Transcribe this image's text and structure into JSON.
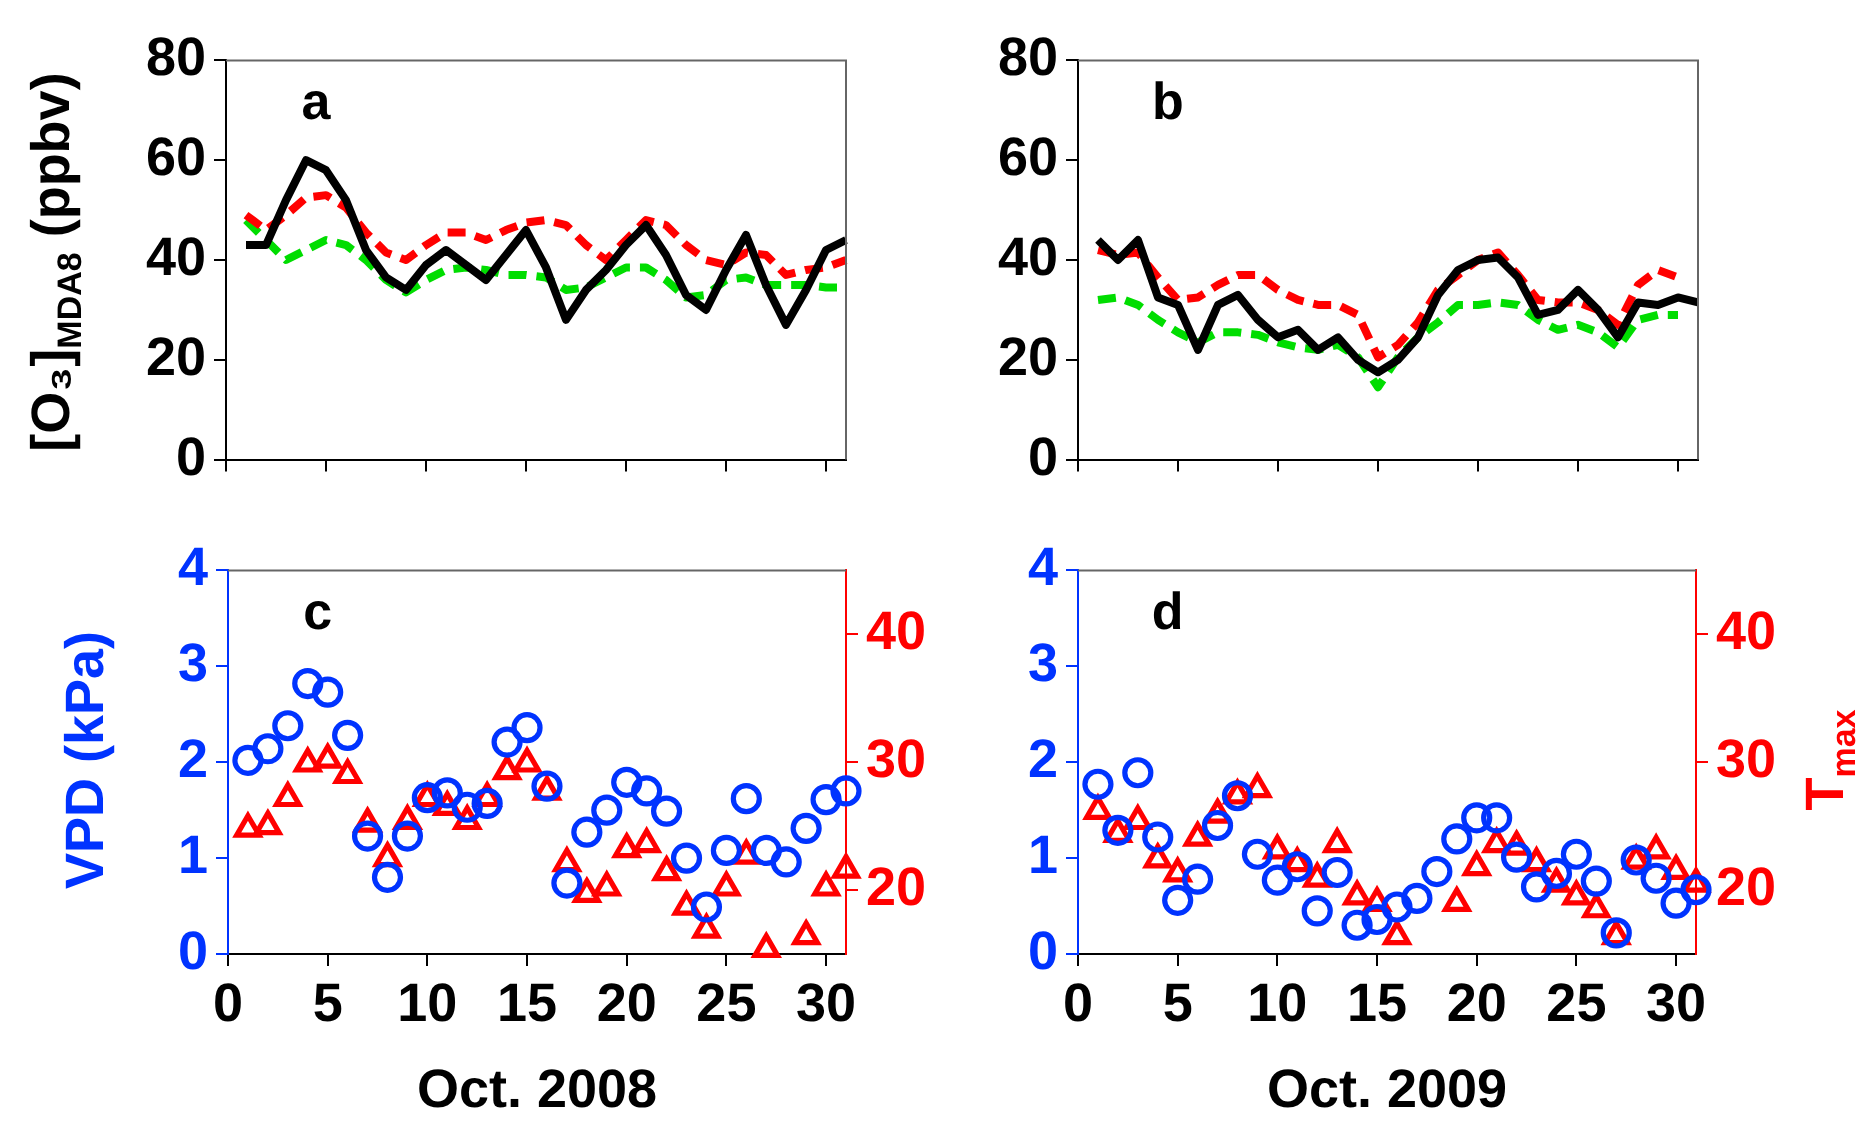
{
  "chart_data": [
    {
      "type": "line",
      "annotations": [
        "a"
      ],
      "ylabel": "[O₃]$_{MDA8}$ (ppbv)",
      "x": [
        1,
        2,
        3,
        4,
        5,
        6,
        7,
        8,
        9,
        10,
        11,
        12,
        13,
        14,
        15,
        16,
        17,
        18,
        19,
        20,
        21,
        22,
        23,
        24,
        25,
        26,
        27,
        28,
        29,
        30,
        31
      ],
      "xlim": [
        0,
        31
      ],
      "xticks": [
        0,
        5,
        10,
        15,
        20,
        25,
        30
      ],
      "ylim": [
        0,
        80
      ],
      "yticks": [
        0,
        20,
        40,
        60,
        80
      ],
      "tick_labels": "y",
      "series": [
        {
          "color": "#000000",
          "line_style": "solid",
          "values": [
            43,
            43,
            52,
            60,
            58,
            52,
            42,
            36.5,
            34,
            39,
            42,
            39,
            36,
            41,
            46,
            38.5,
            28,
            34,
            38,
            43,
            47,
            41,
            33,
            30,
            38,
            45,
            35,
            27,
            34,
            42,
            44
          ]
        },
        {
          "color": "#ff0000",
          "line_style": "dashed",
          "values": [
            49,
            46,
            49,
            52.5,
            53,
            50.5,
            45.5,
            41.5,
            40,
            43,
            45.5,
            45.5,
            44,
            46,
            47.5,
            48,
            47,
            43,
            40,
            44,
            48,
            47,
            43,
            40,
            39,
            41.5,
            41,
            37,
            38,
            38.5,
            40
          ]
        },
        {
          "color": "#00dd00",
          "line_style": "dashed",
          "values": [
            48,
            44,
            40,
            42,
            44,
            43,
            40,
            36,
            33.5,
            36,
            38,
            38.5,
            38,
            37,
            37,
            36.5,
            34,
            34.5,
            36.5,
            38.5,
            38.5,
            36,
            32.5,
            33,
            36,
            36.5,
            35,
            35,
            35,
            34.5,
            34.5
          ]
        }
      ]
    },
    {
      "type": "line",
      "annotations": [
        "b"
      ],
      "x": [
        1,
        2,
        3,
        4,
        5,
        6,
        7,
        8,
        9,
        10,
        11,
        12,
        13,
        14,
        15,
        16,
        17,
        18,
        19,
        20,
        21,
        22,
        23,
        24,
        25,
        26,
        27,
        28,
        29,
        30,
        31
      ],
      "xlim": [
        0,
        31
      ],
      "xticks": [
        0,
        5,
        10,
        15,
        20,
        25,
        30
      ],
      "ylim": [
        0,
        80
      ],
      "yticks": [
        0,
        20,
        40,
        60,
        80
      ],
      "tick_labels": "y",
      "series": [
        {
          "color": "#000000",
          "line_style": "solid",
          "values": [
            44,
            40,
            44,
            32.5,
            31,
            22,
            31,
            33,
            28,
            24.5,
            26,
            22,
            24.5,
            20,
            17.5,
            20,
            24.5,
            33,
            38,
            40,
            40.5,
            36.5,
            29,
            30,
            34,
            30,
            24.5,
            31.5,
            31,
            32.5,
            31.5
          ]
        },
        {
          "color": "#ff0000",
          "line_style": "dashed",
          "values": [
            42,
            41,
            41.5,
            36.5,
            32,
            32.5,
            35,
            37,
            37,
            34,
            32,
            31,
            31,
            29,
            20.5,
            23,
            27.5,
            34,
            37,
            40,
            41.5,
            37,
            32,
            31.5,
            31.5,
            30,
            27,
            35,
            38,
            36.5,
            null
          ]
        },
        {
          "color": "#00dd00",
          "line_style": "dashed",
          "values": [
            32,
            32.5,
            31,
            28,
            25.5,
            23.5,
            25.5,
            25.5,
            25,
            23.5,
            22.5,
            22,
            23,
            20.5,
            14.5,
            20.5,
            24.5,
            27.5,
            31,
            31,
            31.5,
            31,
            28,
            26,
            27,
            25.5,
            22.5,
            28,
            29,
            29,
            null
          ]
        }
      ]
    },
    {
      "type": "scatter",
      "annotations": [
        "c"
      ],
      "xlabel": "Oct. 2008",
      "ylabel": "VPD (kPa)",
      "x": [
        1,
        2,
        3,
        4,
        5,
        6,
        7,
        8,
        9,
        10,
        11,
        12,
        13,
        14,
        15,
        16,
        17,
        18,
        19,
        20,
        21,
        22,
        23,
        24,
        25,
        26,
        27,
        28,
        29,
        30,
        31
      ],
      "xlim": [
        0,
        31
      ],
      "xticks": [
        0,
        5,
        10,
        15,
        20,
        25,
        30
      ],
      "ylim": [
        0,
        4
      ],
      "yticks": [
        0,
        1,
        2,
        3,
        4
      ],
      "y2lim": [
        15,
        45
      ],
      "y2ticks": [
        20,
        30,
        40
      ],
      "series": [
        {
          "color": "#0033ff",
          "marker": "circle",
          "values": [
            2.02,
            2.14,
            2.38,
            2.82,
            2.73,
            2.28,
            1.23,
            0.8,
            1.23,
            1.63,
            1.68,
            1.53,
            1.57,
            2.21,
            2.36,
            1.75,
            0.74,
            1.27,
            1.5,
            1.79,
            1.7,
            1.49,
            1.0,
            0.49,
            1.08,
            1.62,
            1.08,
            0.96,
            1.31,
            1.61,
            1.7
          ]
        },
        {
          "color": "#ff0000",
          "marker": "triangle",
          "axis": "y2",
          "values": [
            24.8,
            25,
            27.2,
            29.9,
            30.2,
            29,
            25.2,
            22.5,
            25.4,
            27.2,
            26.5,
            25.4,
            27.2,
            29.3,
            29.9,
            27.7,
            22.1,
            19.7,
            20.2,
            23.2,
            23.6,
            21.4,
            18.7,
            16.9,
            20.2,
            22.7,
            15.4,
            null,
            16.4,
            20.2,
            21.6
          ]
        }
      ]
    },
    {
      "type": "scatter",
      "annotations": [
        "d"
      ],
      "xlabel": "Oct. 2009",
      "y2label": "T$_{max}$",
      "x": [
        1,
        2,
        3,
        4,
        5,
        6,
        7,
        8,
        9,
        10,
        11,
        12,
        13,
        14,
        15,
        16,
        17,
        18,
        19,
        20,
        21,
        22,
        23,
        24,
        25,
        26,
        27,
        28,
        29,
        30,
        31
      ],
      "xlim": [
        0,
        31
      ],
      "xticks": [
        0,
        5,
        10,
        15,
        20,
        25,
        30
      ],
      "ylim": [
        0,
        4
      ],
      "yticks": [
        0,
        1,
        2,
        3,
        4
      ],
      "y2lim": [
        15,
        45
      ],
      "y2ticks": [
        20,
        30,
        40
      ],
      "series": [
        {
          "color": "#0033ff",
          "marker": "circle",
          "values": [
            1.77,
            1.29,
            1.89,
            1.22,
            0.56,
            0.78,
            1.34,
            1.65,
            1.04,
            0.77,
            0.91,
            0.45,
            0.85,
            0.3,
            0.36,
            0.49,
            0.58,
            0.86,
            1.2,
            1.42,
            1.42,
            1.01,
            0.7,
            0.84,
            1.04,
            0.76,
            0.22,
            0.98,
            0.79,
            0.53,
            0.67
          ]
        },
        {
          "color": "#ff0000",
          "marker": "triangle",
          "axis": "y2",
          "values": [
            26.2,
            24.4,
            25.4,
            22.4,
            21.3,
            24.1,
            25.9,
            27.4,
            27.9,
            23.1,
            22.1,
            20.9,
            23.6,
            19.5,
            19,
            16.4,
            null,
            null,
            19,
            21.8,
            23.6,
            23.4,
            22.1,
            20.5,
            19.5,
            18.5,
            16.4,
            22.3,
            23.1,
            21.5,
            20.5
          ]
        }
      ]
    }
  ]
}
